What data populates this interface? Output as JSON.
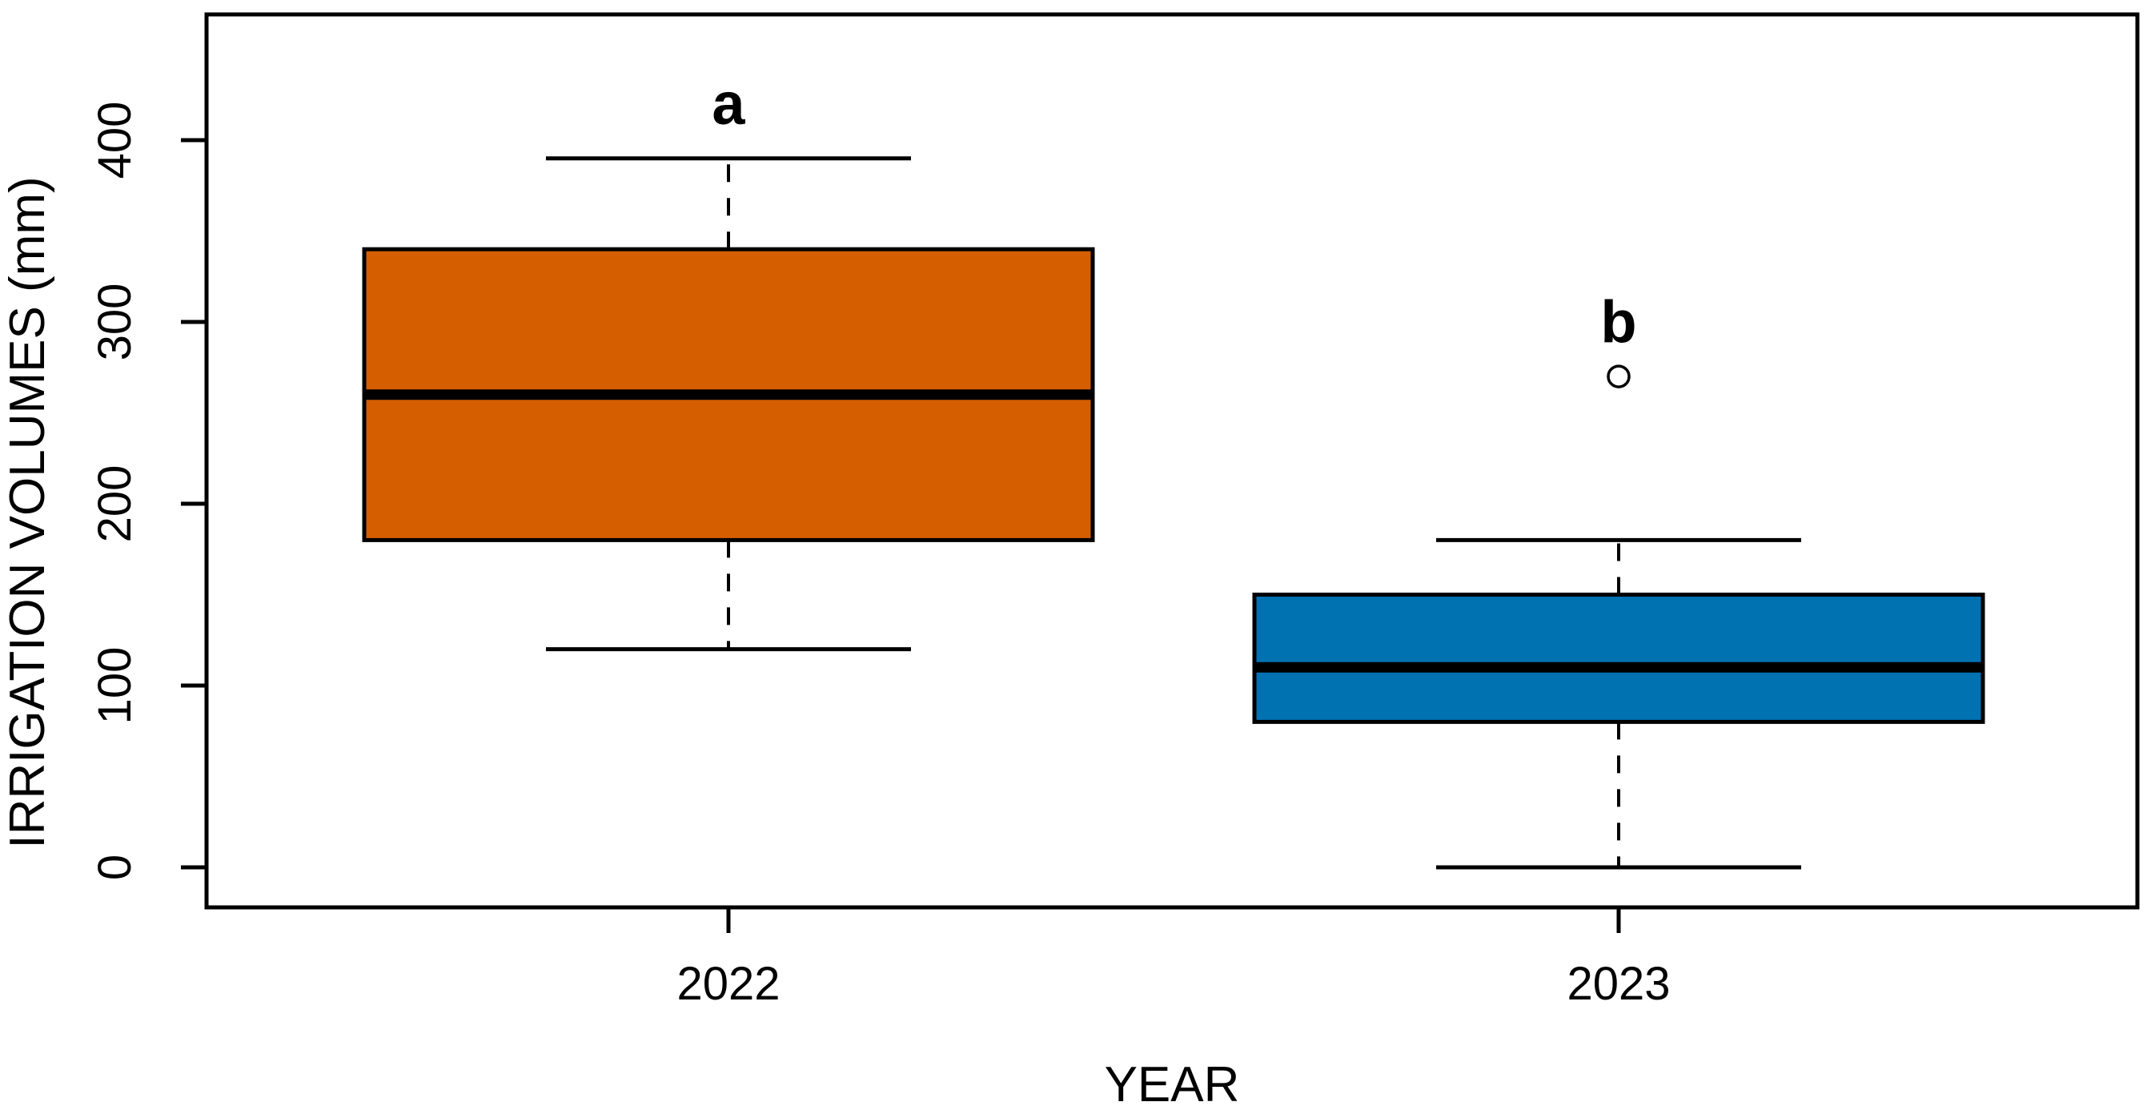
{
  "figure": {
    "background_color": "#FFFFFF",
    "frame_color": "#000000"
  },
  "chart_data": {
    "type": "boxplot",
    "title": "",
    "xlabel": "YEAR",
    "ylabel": "IRRIGATION VOLUMES (mm)",
    "categories": [
      "2022",
      "2023"
    ],
    "y_ticks": [
      0,
      100,
      200,
      300,
      400
    ],
    "ylim": [
      -22,
      469
    ],
    "grid": false,
    "legend": null,
    "whisker_style": "dashed",
    "outlier_marker": "open-circle",
    "series": [
      {
        "category": "2022",
        "fill_color": "#D55E00",
        "whisker_low": 120,
        "q1": 180,
        "median": 260,
        "q3": 340,
        "whisker_high": 390,
        "outliers": [],
        "significance_label": "a"
      },
      {
        "category": "2023",
        "fill_color": "#0072B2",
        "whisker_low": 0,
        "q1": 80,
        "median": 110,
        "q3": 150,
        "whisker_high": 180,
        "outliers": [
          270
        ],
        "significance_label": "b"
      }
    ]
  }
}
